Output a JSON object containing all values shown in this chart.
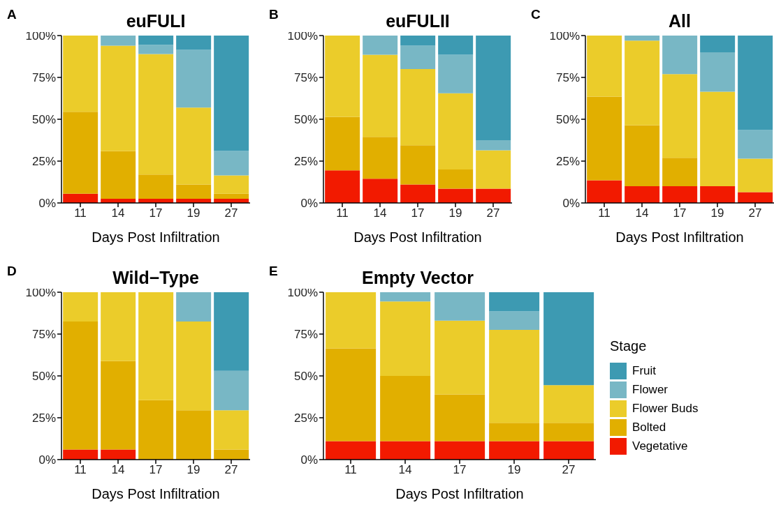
{
  "chart_data": [
    {
      "type": "bar",
      "title": "euFULI",
      "annotations": [
        "A"
      ],
      "xlabel": "Days Post Infiltration",
      "categories": [
        "11",
        "14",
        "17",
        "19",
        "27"
      ],
      "stacked": true,
      "ylim": [
        0,
        100
      ],
      "yticks": [
        {
          "value": 0,
          "label": "0%"
        },
        {
          "value": 25,
          "label": "25%"
        },
        {
          "value": 50,
          "label": "50%"
        },
        {
          "value": 75,
          "label": "75%"
        },
        {
          "value": 100,
          "label": "100%"
        }
      ],
      "series": [
        {
          "color": "#f21a00",
          "values": [
            5.5,
            2.5,
            2.5,
            2.5,
            2.5
          ]
        },
        {
          "color": "#e1af00",
          "values": [
            49,
            28.5,
            14.5,
            8.5,
            3
          ]
        },
        {
          "color": "#ebcc2a",
          "values": [
            45.5,
            63,
            72,
            46,
            11
          ]
        },
        {
          "color": "#78b7c5",
          "values": [
            0,
            6,
            5.5,
            34.5,
            14.5
          ]
        },
        {
          "color": "#3d9ab2",
          "values": [
            0,
            0,
            5.5,
            8.5,
            69
          ]
        }
      ]
    },
    {
      "type": "bar",
      "title": "euFULII",
      "annotations": [
        "B"
      ],
      "xlabel": "Days Post Infiltration",
      "categories": [
        "11",
        "14",
        "17",
        "19",
        "27"
      ],
      "stacked": true,
      "ylim": [
        0,
        100
      ],
      "yticks": [
        {
          "value": 0,
          "label": "0%"
        },
        {
          "value": 25,
          "label": "25%"
        },
        {
          "value": 50,
          "label": "50%"
        },
        {
          "value": 75,
          "label": "75%"
        },
        {
          "value": 100,
          "label": "100%"
        }
      ],
      "series": [
        {
          "color": "#f21a00",
          "values": [
            19.5,
            14.5,
            11,
            8.5,
            8.5
          ]
        },
        {
          "color": "#e1af00",
          "values": [
            32,
            25,
            23.5,
            11.5,
            0
          ]
        },
        {
          "color": "#ebcc2a",
          "values": [
            48.5,
            49,
            45.5,
            45.5,
            23
          ]
        },
        {
          "color": "#78b7c5",
          "values": [
            0,
            11.5,
            14,
            23,
            6
          ]
        },
        {
          "color": "#3d9ab2",
          "values": [
            0,
            0,
            6,
            11.5,
            62.5
          ]
        }
      ]
    },
    {
      "type": "bar",
      "title": "All",
      "annotations": [
        "C"
      ],
      "xlabel": "Days Post Infiltration",
      "categories": [
        "11",
        "14",
        "17",
        "19",
        "27"
      ],
      "stacked": true,
      "ylim": [
        0,
        100
      ],
      "yticks": [
        {
          "value": 0,
          "label": "0%"
        },
        {
          "value": 25,
          "label": "25%"
        },
        {
          "value": 50,
          "label": "50%"
        },
        {
          "value": 75,
          "label": "75%"
        },
        {
          "value": 100,
          "label": "100%"
        }
      ],
      "series": [
        {
          "color": "#f21a00",
          "values": [
            13.5,
            10,
            10,
            10,
            6.5
          ]
        },
        {
          "color": "#e1af00",
          "values": [
            50,
            36.5,
            17,
            0,
            0
          ]
        },
        {
          "color": "#ebcc2a",
          "values": [
            36.5,
            50.5,
            50,
            56.5,
            20
          ]
        },
        {
          "color": "#78b7c5",
          "values": [
            0,
            3,
            23,
            23.5,
            17
          ]
        },
        {
          "color": "#3d9ab2",
          "values": [
            0,
            0,
            0,
            10,
            56.5
          ]
        }
      ]
    },
    {
      "type": "bar",
      "title": "Wild−Type",
      "annotations": [
        "D"
      ],
      "xlabel": "Days Post Infiltration",
      "categories": [
        "11",
        "14",
        "17",
        "19",
        "27"
      ],
      "stacked": true,
      "ylim": [
        0,
        100
      ],
      "yticks": [
        {
          "value": 0,
          "label": "0%"
        },
        {
          "value": 25,
          "label": "25%"
        },
        {
          "value": 50,
          "label": "50%"
        },
        {
          "value": 75,
          "label": "75%"
        },
        {
          "value": 100,
          "label": "100%"
        }
      ],
      "series": [
        {
          "color": "#f21a00",
          "values": [
            6,
            6,
            0,
            0,
            0
          ]
        },
        {
          "color": "#e1af00",
          "values": [
            76.5,
            53,
            35.5,
            29.5,
            6
          ]
        },
        {
          "color": "#ebcc2a",
          "values": [
            17.5,
            41,
            64.5,
            53,
            23.5
          ]
        },
        {
          "color": "#78b7c5",
          "values": [
            0,
            0,
            0,
            17.5,
            23.5
          ]
        },
        {
          "color": "#3d9ab2",
          "values": [
            0,
            0,
            0,
            0,
            47
          ]
        }
      ]
    },
    {
      "type": "bar",
      "title": "Empty Vector",
      "annotations": [
        "E"
      ],
      "xlabel": "Days Post Infiltration",
      "categories": [
        "11",
        "14",
        "17",
        "19",
        "27"
      ],
      "stacked": true,
      "ylim": [
        0,
        100
      ],
      "yticks": [
        {
          "value": 0,
          "label": "0%"
        },
        {
          "value": 25,
          "label": "25%"
        },
        {
          "value": 50,
          "label": "50%"
        },
        {
          "value": 75,
          "label": "75%"
        },
        {
          "value": 100,
          "label": "100%"
        }
      ],
      "legend": "right",
      "legend_title": "Stage",
      "series": [
        {
          "name": "Vegetative",
          "color": "#f21a00",
          "values": [
            11,
            11,
            11,
            11,
            11
          ]
        },
        {
          "name": "Bolted",
          "color": "#e1af00",
          "values": [
            55.5,
            39,
            28,
            11,
            11
          ]
        },
        {
          "name": "Flower Buds",
          "color": "#ebcc2a",
          "values": [
            33.5,
            44.5,
            44,
            55.5,
            22.5
          ]
        },
        {
          "name": "Flower",
          "color": "#78b7c5",
          "values": [
            0,
            5.5,
            17,
            11,
            0
          ]
        },
        {
          "name": "Fruit",
          "color": "#3d9ab2",
          "values": [
            0,
            0,
            0,
            11.5,
            55.5
          ]
        }
      ]
    }
  ]
}
